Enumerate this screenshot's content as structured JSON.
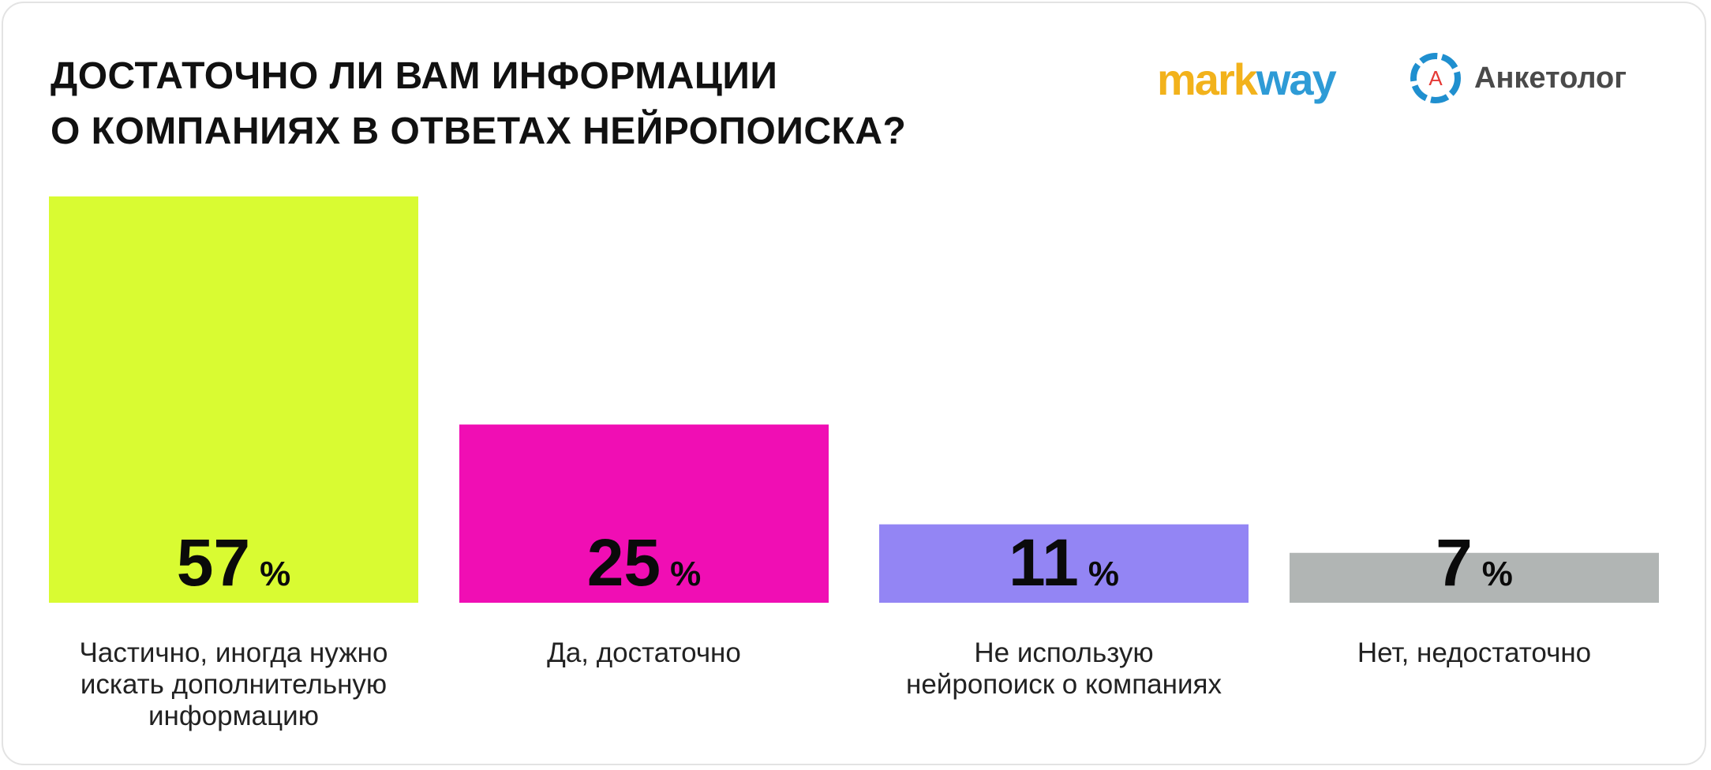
{
  "title_lines": [
    "ДОСТАТОЧНО ЛИ ВАМ ИНФОРМАЦИИ",
    "О КОМПАНИЯХ В ОТВЕТАХ НЕЙРОПОИСКА?"
  ],
  "logos": {
    "markway": {
      "part1": "mark",
      "part2": "way"
    },
    "anketolog": {
      "letter": "A",
      "name": "Анкетолог"
    }
  },
  "colors": {
    "markway_yellow": "#f2b21b",
    "markway_blue": "#2e9bd6",
    "anketolog_blue": "#1f8fcf",
    "anketolog_red": "#e53935"
  },
  "chart_data": {
    "type": "bar",
    "title": "ДОСТАТОЧНО ЛИ ВАМ ИНФОРМАЦИИ О КОМПАНИЯХ В ОТВЕТАХ НЕЙРОПОИСКА?",
    "categories": [
      "Частично, иногда нужно искать дополнительную информацию",
      "Да, достаточно",
      "Не использую нейропоиск о компаниях",
      "Нет, недостаточно"
    ],
    "category_lines": [
      [
        "Частично, иногда нужно",
        "искать дополнительную",
        "информацию"
      ],
      [
        "Да, достаточно"
      ],
      [
        "Не использую",
        "нейропоиск о компаниях"
      ],
      [
        "Нет, недостаточно"
      ]
    ],
    "values": [
      57,
      25,
      11,
      7
    ],
    "value_suffix": "%",
    "bar_colors": [
      "#d9fb32",
      "#f00eb4",
      "#9385f4",
      "#b1b5b4"
    ],
    "ylim": [
      0,
      57
    ],
    "grid": false,
    "legend": "none"
  }
}
